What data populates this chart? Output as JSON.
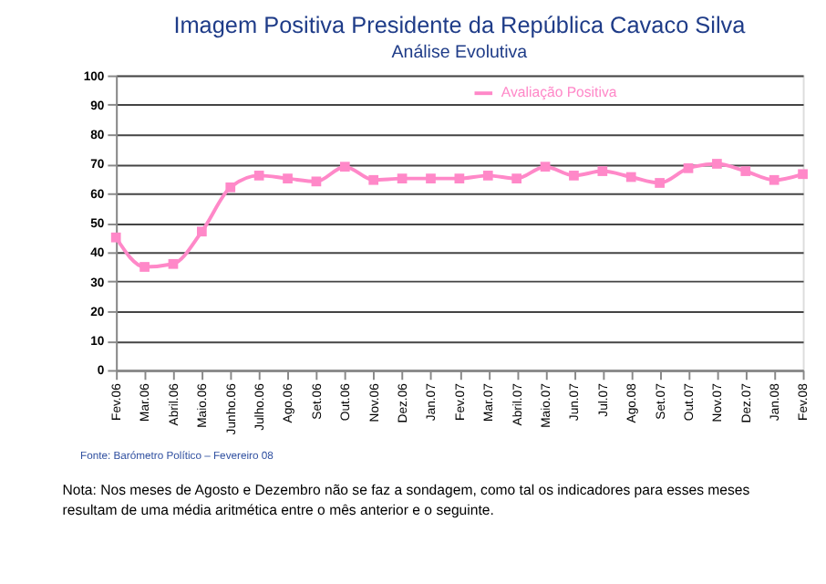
{
  "chart_data": {
    "type": "line",
    "title": "Imagem Positiva Presidente da República  Cavaco Silva",
    "subtitle": "Análise Evolutiva",
    "categories": [
      "Fev.06",
      "Mar.06",
      "Abril.06",
      "Maio.06",
      "Junho.06",
      "Julho.06",
      "Ago.06",
      "Set.06",
      "Out.06",
      "Nov.06",
      "Dez.06",
      "Jan.07",
      "Fev.07",
      "Mar.07",
      "Abril.07",
      "Maio.07",
      "Jun.07",
      "Jul.07",
      "Ago.08",
      "Set.07",
      "Out.07",
      "Nov.07",
      "Dez.07",
      "Jan.08",
      "Fev.08"
    ],
    "series": [
      {
        "name": "Avaliação Positiva",
        "color": "#ff88c8",
        "values": [
          45,
          35,
          36,
          47,
          62,
          66,
          65,
          64,
          69,
          64.5,
          65,
          65,
          65,
          66,
          65,
          69,
          66,
          67.5,
          65.5,
          63.5,
          68.5,
          70,
          67.5,
          64.5,
          66.5
        ]
      }
    ],
    "ylim": [
      0,
      100
    ],
    "yticks": [
      0,
      10,
      20,
      30,
      40,
      50,
      60,
      70,
      80,
      90,
      100
    ],
    "grid": "y",
    "legend": "top right",
    "marker": "square",
    "line_style": "solid",
    "annotations": [
      "Fonte: Barómetro Político – Fevereiro 08",
      "Nota: Nos meses de Agosto e Dezembro não se faz a sondagem, como tal os indicadores para esses meses resultam de uma média aritmética entre o mês anterior e o seguinte."
    ]
  }
}
